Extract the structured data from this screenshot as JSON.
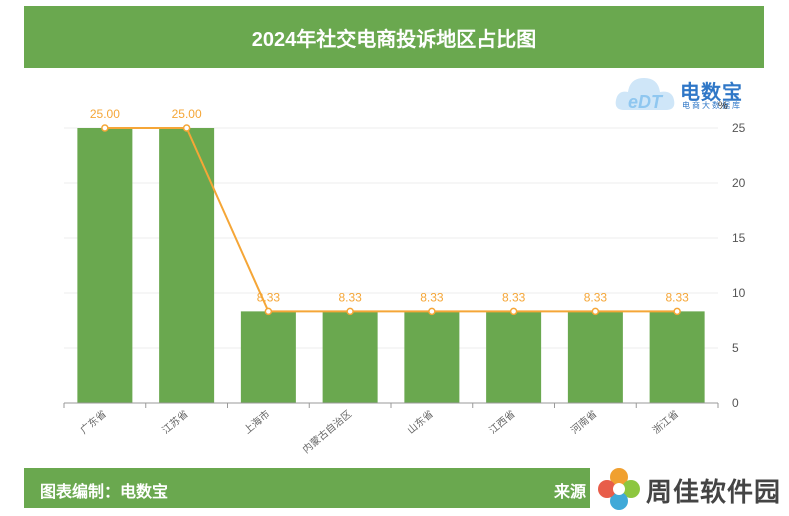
{
  "header": {
    "title": "2024年社交电商投诉地区占比图"
  },
  "logo": {
    "brand": "电数宝",
    "tagline": "电商大数据库",
    "mark": "eDT"
  },
  "chart_data": {
    "type": "bar",
    "title": "2024年社交电商投诉地区占比图",
    "unit": "%",
    "categories": [
      "广东省",
      "江苏省",
      "上海市",
      "内蒙古自治区",
      "山东省",
      "江西省",
      "河南省",
      "浙江省"
    ],
    "values": [
      25.0,
      25.0,
      8.33,
      8.33,
      8.33,
      8.33,
      8.33,
      8.33
    ],
    "labels": [
      "25.00",
      "25.00",
      "8.33",
      "8.33",
      "8.33",
      "8.33",
      "8.33",
      "8.33"
    ],
    "ylim": [
      0,
      25
    ],
    "yticks": [
      0,
      5,
      10,
      15,
      20,
      25
    ],
    "y_axis_side": "right",
    "line_overlay": true,
    "grid": true,
    "colors": {
      "bar": "#6aa84f",
      "line": "#f5a637",
      "label": "#f5a637",
      "axis": "#999999",
      "grid": "#eeeeee"
    }
  },
  "footer": {
    "left": "图表编制：电数宝",
    "right": "来源"
  },
  "watermark": {
    "text": "周佳软件园"
  }
}
